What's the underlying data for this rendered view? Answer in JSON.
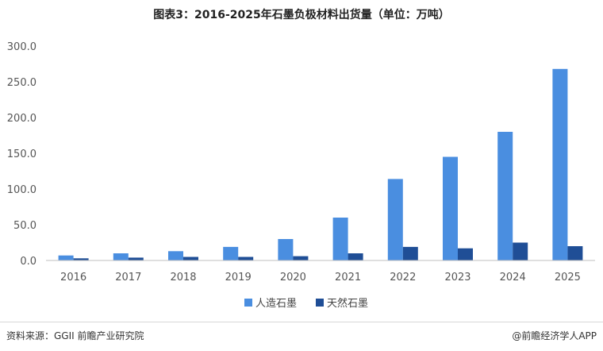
{
  "chart_data": {
    "type": "bar",
    "title": "图表3：2016-2025年石墨负极材料出货量（单位：万吨）",
    "categories": [
      "2016",
      "2017",
      "2018",
      "2019",
      "2020",
      "2021",
      "2022",
      "2023",
      "2024",
      "2025"
    ],
    "series": [
      {
        "name": "人造石墨",
        "color": "#4a8ee0",
        "values": [
          7,
          10,
          13,
          19,
          30,
          60,
          114,
          145,
          180,
          268
        ]
      },
      {
        "name": "天然石墨",
        "color": "#1f4e96",
        "values": [
          3,
          4,
          5,
          5,
          6,
          10,
          19,
          17,
          25,
          20
        ]
      }
    ],
    "yticks": [
      "0.0",
      "50.0",
      "100.0",
      "150.0",
      "200.0",
      "250.0",
      "300.0"
    ],
    "ylim": [
      0,
      300
    ],
    "legend_position": "bottom-center",
    "grid": false
  },
  "footer": {
    "source": "资料来源：GGII  前瞻产业研究院",
    "brand": "@前瞻经济学人APP"
  }
}
